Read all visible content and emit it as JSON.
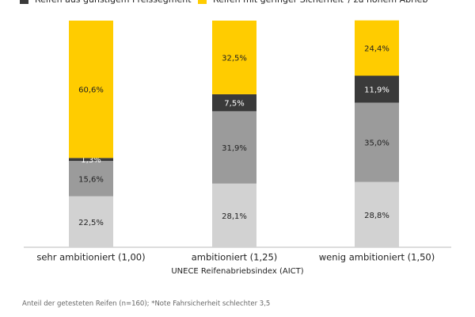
{
  "chart_data": {
    "type": "stacked_bar",
    "categories": [
      "sehr ambitioniert (1,00)",
      "ambitioniert (1,25)",
      "wenig ambitioniert (1,50)"
    ],
    "series": [
      {
        "color": "#d2d2d2",
        "values": [
          22.5,
          28.1,
          28.8
        ],
        "value_labels": [
          "22,5%",
          "28,1%",
          "28,8%"
        ]
      },
      {
        "color": "#9b9b9b",
        "values": [
          15.6,
          31.9,
          35.0
        ],
        "value_labels": [
          "15,6%",
          "31,9%",
          "35,0%"
        ]
      },
      {
        "name": "Reifen aus günstigem Preissegment",
        "color": "#3a3a3a",
        "values": [
          1.3,
          7.5,
          11.9
        ],
        "value_labels": [
          "1,3%",
          "7,5%",
          "11,9%"
        ]
      },
      {
        "name": "Reifen mit geringer Sicherheit*/ zu hohem Abrieb",
        "color": "#ffcc00",
        "values": [
          60.6,
          32.5,
          24.4
        ],
        "value_labels": [
          "60,6%",
          "32,5%",
          "24,4%"
        ]
      }
    ],
    "ylim": [
      0,
      100
    ],
    "x_label": "UNECE Reifenabriebsindex (AICT)",
    "footnote": "Anteil der getesteten Reifen (n=160); *Note Fahrsicherheit schlechter 3,5"
  }
}
